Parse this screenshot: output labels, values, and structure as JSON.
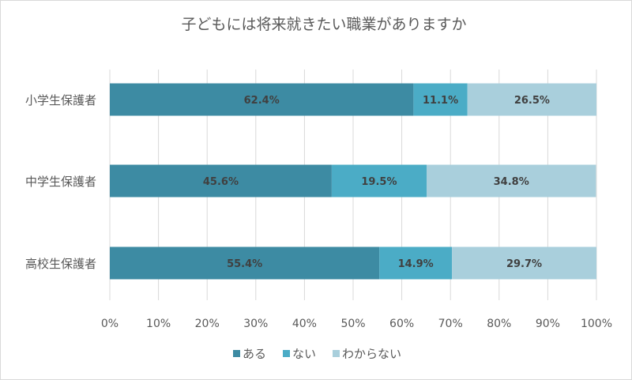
{
  "chart_data": {
    "type": "bar",
    "orientation": "horizontal",
    "stacked": "percent",
    "title": "子どもには将来就きたい職業がありますか",
    "xlabel": "",
    "ylabel": "",
    "xlim": [
      0,
      100
    ],
    "x_ticks": [
      "0%",
      "10%",
      "20%",
      "30%",
      "40%",
      "50%",
      "60%",
      "70%",
      "80%",
      "90%",
      "100%"
    ],
    "grid": true,
    "legend_position": "bottom",
    "categories": [
      "小学生保護者",
      "中学生保護者",
      "高校生保護者"
    ],
    "series": [
      {
        "name": "ある",
        "color": "#3d8ba3",
        "values": [
          62.4,
          45.6,
          55.4
        ]
      },
      {
        "name": "ない",
        "color": "#4bacc6",
        "values": [
          11.1,
          19.5,
          14.9
        ]
      },
      {
        "name": "わからない",
        "color": "#a9cfdc",
        "values": [
          26.5,
          34.8,
          29.7
        ]
      }
    ]
  }
}
